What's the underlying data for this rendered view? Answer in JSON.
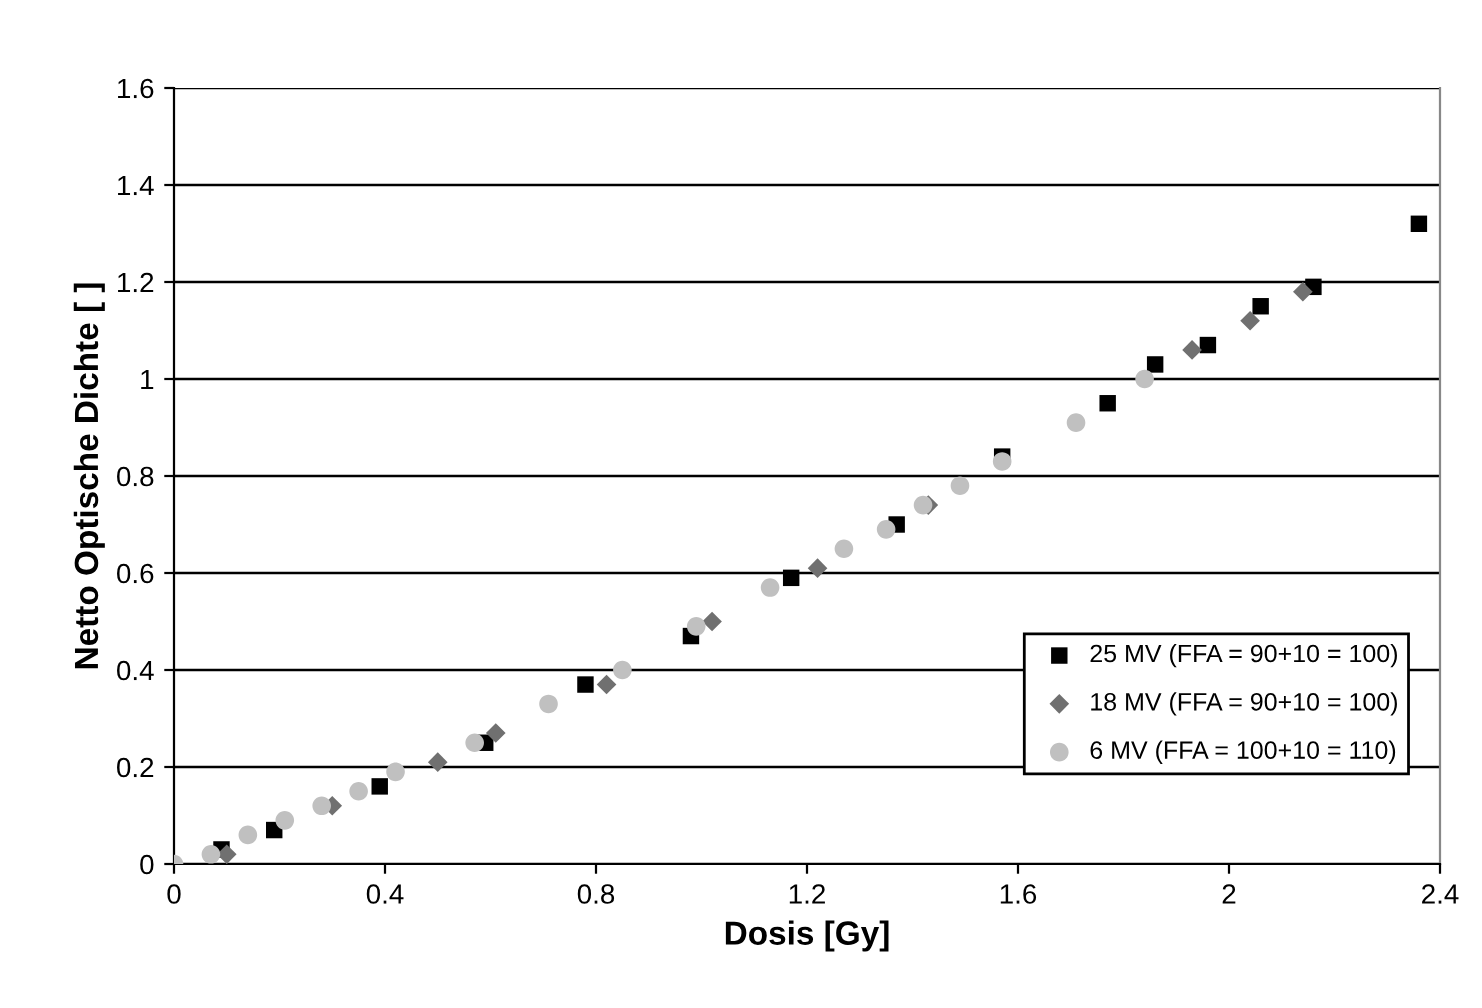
{
  "chart_data": {
    "type": "scatter",
    "xlabel": "Dosis [Gy]",
    "ylabel": "Netto Optische Dichte [ ]",
    "xlim": [
      0,
      2.4
    ],
    "xticks": [
      0,
      0.4,
      0.8,
      1.2,
      1.6,
      2,
      2.4
    ],
    "ylim": [
      0,
      1.6
    ],
    "yticks": [
      0,
      0.2,
      0.4,
      0.6,
      0.8,
      1,
      1.2,
      1.4,
      1.6
    ],
    "grid": "y",
    "legend": "bottom right",
    "series": [
      {
        "name": "25 MV (FFA = 90+10 = 100)",
        "color": "#000000",
        "marker": "square",
        "x": [
          0.09,
          0.19,
          0.39,
          0.59,
          0.78,
          0.98,
          1.17,
          1.37,
          1.57,
          1.77,
          1.86,
          1.96,
          2.06,
          2.16,
          2.36
        ],
        "values": [
          0.03,
          0.07,
          0.16,
          0.25,
          0.37,
          0.47,
          0.59,
          0.7,
          0.84,
          0.95,
          1.03,
          1.07,
          1.15,
          1.19,
          1.32
        ]
      },
      {
        "name": "18 MV (FFA = 90+10 = 100)",
        "color": "#707070",
        "marker": "diamond",
        "x": [
          0.1,
          0.3,
          0.5,
          0.61,
          0.82,
          1.02,
          1.22,
          1.43,
          1.93,
          2.04,
          2.14
        ],
        "values": [
          0.02,
          0.12,
          0.21,
          0.27,
          0.37,
          0.5,
          0.61,
          0.74,
          1.06,
          1.12,
          1.18
        ]
      },
      {
        "name": "6 MV (FFA = 100+10 = 110)",
        "color": "#c0c0c0",
        "marker": "circle",
        "x": [
          0,
          0.07,
          0.14,
          0.21,
          0.28,
          0.35,
          0.42,
          0.57,
          0.71,
          0.85,
          0.99,
          1.13,
          1.27,
          1.35,
          1.42,
          1.49,
          1.57,
          1.71,
          1.84
        ],
        "values": [
          0,
          0.02,
          0.06,
          0.09,
          0.12,
          0.15,
          0.19,
          0.25,
          0.33,
          0.4,
          0.49,
          0.57,
          0.65,
          0.69,
          0.74,
          0.78,
          0.83,
          0.91,
          1.0
        ]
      }
    ]
  }
}
